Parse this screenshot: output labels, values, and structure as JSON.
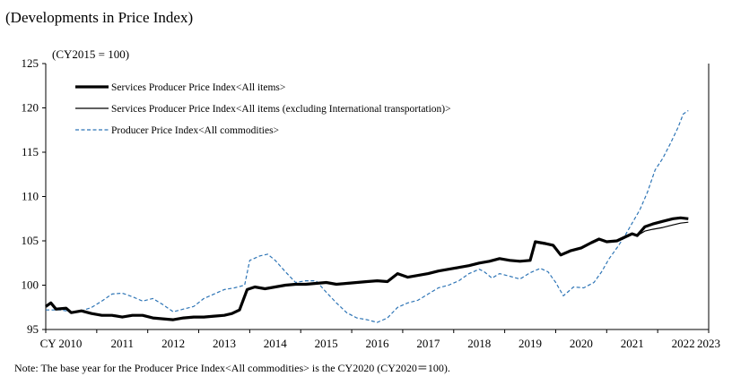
{
  "header": {
    "title": "(Developments in Price Index)"
  },
  "note": "Note: The base year for the Producer Price Index<All commodities> is the CY2020 (CY2020＝100).",
  "chart_data": {
    "type": "line",
    "unit_label": "(CY2015 = 100)",
    "y_ticks": [
      "125",
      "120",
      "115",
      "110",
      "105",
      "100",
      "95"
    ],
    "x_ticks": [
      "CY 2010",
      "2011",
      "2012",
      "2013",
      "2014",
      "2015",
      "2016",
      "2017",
      "2018",
      "2019",
      "2020",
      "2021",
      "2022",
      "2023"
    ],
    "ylim": [
      95,
      125
    ],
    "xlim": [
      2010,
      2023
    ],
    "grid": false,
    "legend_position": "top-left",
    "series": [
      {
        "name": "Services Producer Price Index<All items>",
        "color": "#000000",
        "style": "thick",
        "points": [
          [
            2010.0,
            97.6
          ],
          [
            2010.1,
            98.0
          ],
          [
            2010.2,
            97.3
          ],
          [
            2010.4,
            97.4
          ],
          [
            2010.5,
            96.9
          ],
          [
            2010.7,
            97.1
          ],
          [
            2010.9,
            96.8
          ],
          [
            2011.1,
            96.6
          ],
          [
            2011.3,
            96.6
          ],
          [
            2011.5,
            96.4
          ],
          [
            2011.7,
            96.6
          ],
          [
            2011.9,
            96.6
          ],
          [
            2012.1,
            96.3
          ],
          [
            2012.3,
            96.2
          ],
          [
            2012.5,
            96.1
          ],
          [
            2012.7,
            96.3
          ],
          [
            2012.9,
            96.4
          ],
          [
            2013.1,
            96.4
          ],
          [
            2013.3,
            96.5
          ],
          [
            2013.5,
            96.6
          ],
          [
            2013.65,
            96.8
          ],
          [
            2013.8,
            97.2
          ],
          [
            2013.95,
            99.5
          ],
          [
            2014.1,
            99.8
          ],
          [
            2014.3,
            99.6
          ],
          [
            2014.5,
            99.8
          ],
          [
            2014.7,
            100.0
          ],
          [
            2014.9,
            100.1
          ],
          [
            2015.1,
            100.1
          ],
          [
            2015.3,
            100.2
          ],
          [
            2015.5,
            100.3
          ],
          [
            2015.7,
            100.1
          ],
          [
            2015.9,
            100.2
          ],
          [
            2016.1,
            100.3
          ],
          [
            2016.3,
            100.4
          ],
          [
            2016.5,
            100.5
          ],
          [
            2016.7,
            100.4
          ],
          [
            2016.9,
            101.3
          ],
          [
            2017.1,
            100.9
          ],
          [
            2017.3,
            101.1
          ],
          [
            2017.5,
            101.3
          ],
          [
            2017.7,
            101.6
          ],
          [
            2017.9,
            101.8
          ],
          [
            2018.1,
            102.0
          ],
          [
            2018.3,
            102.2
          ],
          [
            2018.5,
            102.5
          ],
          [
            2018.7,
            102.7
          ],
          [
            2018.9,
            103.0
          ],
          [
            2019.1,
            102.8
          ],
          [
            2019.3,
            102.7
          ],
          [
            2019.5,
            102.8
          ],
          [
            2019.6,
            104.9
          ],
          [
            2019.8,
            104.7
          ],
          [
            2019.95,
            104.5
          ],
          [
            2020.1,
            103.4
          ],
          [
            2020.3,
            103.9
          ],
          [
            2020.5,
            104.2
          ],
          [
            2020.7,
            104.8
          ],
          [
            2020.85,
            105.2
          ],
          [
            2021.0,
            104.9
          ],
          [
            2021.2,
            105.0
          ],
          [
            2021.35,
            105.4
          ],
          [
            2021.5,
            105.8
          ],
          [
            2021.6,
            105.6
          ],
          [
            2021.75,
            106.6
          ],
          [
            2021.9,
            106.9
          ],
          [
            2022.1,
            107.2
          ],
          [
            2022.3,
            107.5
          ],
          [
            2022.45,
            107.6
          ],
          [
            2022.6,
            107.5
          ]
        ]
      },
      {
        "name": "Services Producer Price Index<All items (excluding International transportation)>",
        "color": "#000000",
        "style": "thin",
        "points": [
          [
            2010.0,
            97.5
          ],
          [
            2010.1,
            97.9
          ],
          [
            2010.2,
            97.2
          ],
          [
            2010.4,
            97.3
          ],
          [
            2010.5,
            96.9
          ],
          [
            2010.7,
            97.1
          ],
          [
            2010.9,
            96.8
          ],
          [
            2011.1,
            96.6
          ],
          [
            2011.3,
            96.6
          ],
          [
            2011.5,
            96.4
          ],
          [
            2011.7,
            96.6
          ],
          [
            2011.9,
            96.6
          ],
          [
            2012.1,
            96.3
          ],
          [
            2012.3,
            96.2
          ],
          [
            2012.5,
            96.1
          ],
          [
            2012.7,
            96.3
          ],
          [
            2012.9,
            96.4
          ],
          [
            2013.1,
            96.4
          ],
          [
            2013.3,
            96.5
          ],
          [
            2013.5,
            96.6
          ],
          [
            2013.65,
            96.8
          ],
          [
            2013.8,
            97.2
          ],
          [
            2013.95,
            99.5
          ],
          [
            2014.1,
            99.8
          ],
          [
            2014.3,
            99.6
          ],
          [
            2014.5,
            99.8
          ],
          [
            2014.7,
            100.0
          ],
          [
            2014.9,
            100.1
          ],
          [
            2015.1,
            100.1
          ],
          [
            2015.3,
            100.2
          ],
          [
            2015.5,
            100.3
          ],
          [
            2015.7,
            100.1
          ],
          [
            2015.9,
            100.2
          ],
          [
            2016.1,
            100.3
          ],
          [
            2016.3,
            100.4
          ],
          [
            2016.5,
            100.5
          ],
          [
            2016.7,
            100.4
          ],
          [
            2016.9,
            101.2
          ],
          [
            2017.1,
            100.9
          ],
          [
            2017.3,
            101.1
          ],
          [
            2017.5,
            101.3
          ],
          [
            2017.7,
            101.6
          ],
          [
            2017.9,
            101.8
          ],
          [
            2018.1,
            102.0
          ],
          [
            2018.3,
            102.2
          ],
          [
            2018.5,
            102.5
          ],
          [
            2018.7,
            102.7
          ],
          [
            2018.9,
            103.0
          ],
          [
            2019.1,
            102.8
          ],
          [
            2019.3,
            102.7
          ],
          [
            2019.5,
            102.8
          ],
          [
            2019.6,
            104.8
          ],
          [
            2019.8,
            104.6
          ],
          [
            2019.95,
            104.4
          ],
          [
            2020.1,
            103.4
          ],
          [
            2020.3,
            103.9
          ],
          [
            2020.5,
            104.2
          ],
          [
            2020.7,
            104.7
          ],
          [
            2020.85,
            105.1
          ],
          [
            2021.0,
            104.9
          ],
          [
            2021.2,
            105.0
          ],
          [
            2021.35,
            105.3
          ],
          [
            2021.5,
            105.7
          ],
          [
            2021.6,
            105.6
          ],
          [
            2021.75,
            106.1
          ],
          [
            2021.9,
            106.3
          ],
          [
            2022.1,
            106.5
          ],
          [
            2022.3,
            106.8
          ],
          [
            2022.45,
            107.0
          ],
          [
            2022.6,
            107.1
          ]
        ]
      },
      {
        "name": "Producer Price Index<All commodities>",
        "color": "#2e75b6",
        "style": "dashed",
        "points": [
          [
            2010.0,
            97.2
          ],
          [
            2010.3,
            97.2
          ],
          [
            2010.5,
            97.0
          ],
          [
            2010.7,
            97.1
          ],
          [
            2010.9,
            97.5
          ],
          [
            2011.1,
            98.2
          ],
          [
            2011.3,
            99.0
          ],
          [
            2011.5,
            99.1
          ],
          [
            2011.7,
            98.7
          ],
          [
            2011.9,
            98.2
          ],
          [
            2012.1,
            98.5
          ],
          [
            2012.3,
            97.8
          ],
          [
            2012.5,
            97.0
          ],
          [
            2012.7,
            97.3
          ],
          [
            2012.9,
            97.6
          ],
          [
            2013.1,
            98.5
          ],
          [
            2013.3,
            99.0
          ],
          [
            2013.5,
            99.5
          ],
          [
            2013.7,
            99.7
          ],
          [
            2013.9,
            100.0
          ],
          [
            2014.0,
            102.8
          ],
          [
            2014.2,
            103.3
          ],
          [
            2014.35,
            103.5
          ],
          [
            2014.5,
            102.8
          ],
          [
            2014.7,
            101.5
          ],
          [
            2014.9,
            100.3
          ],
          [
            2015.1,
            100.5
          ],
          [
            2015.3,
            100.5
          ],
          [
            2015.5,
            99.2
          ],
          [
            2015.7,
            98.0
          ],
          [
            2015.9,
            96.9
          ],
          [
            2016.1,
            96.3
          ],
          [
            2016.3,
            96.1
          ],
          [
            2016.5,
            95.8
          ],
          [
            2016.7,
            96.3
          ],
          [
            2016.9,
            97.5
          ],
          [
            2017.1,
            98.0
          ],
          [
            2017.3,
            98.3
          ],
          [
            2017.5,
            99.0
          ],
          [
            2017.7,
            99.7
          ],
          [
            2017.9,
            100.0
          ],
          [
            2018.1,
            100.5
          ],
          [
            2018.3,
            101.3
          ],
          [
            2018.5,
            101.8
          ],
          [
            2018.6,
            101.5
          ],
          [
            2018.75,
            100.8
          ],
          [
            2018.9,
            101.3
          ],
          [
            2019.1,
            101.0
          ],
          [
            2019.3,
            100.7
          ],
          [
            2019.5,
            101.4
          ],
          [
            2019.7,
            101.9
          ],
          [
            2019.85,
            101.5
          ],
          [
            2020.0,
            100.3
          ],
          [
            2020.15,
            98.8
          ],
          [
            2020.35,
            99.8
          ],
          [
            2020.55,
            99.7
          ],
          [
            2020.75,
            100.3
          ],
          [
            2020.9,
            101.5
          ],
          [
            2021.05,
            103.0
          ],
          [
            2021.2,
            104.2
          ],
          [
            2021.35,
            105.5
          ],
          [
            2021.5,
            107.0
          ],
          [
            2021.65,
            108.5
          ],
          [
            2021.8,
            110.5
          ],
          [
            2021.95,
            113.0
          ],
          [
            2022.1,
            114.3
          ],
          [
            2022.25,
            116.0
          ],
          [
            2022.4,
            117.8
          ],
          [
            2022.5,
            119.3
          ],
          [
            2022.6,
            119.7
          ]
        ]
      }
    ]
  }
}
